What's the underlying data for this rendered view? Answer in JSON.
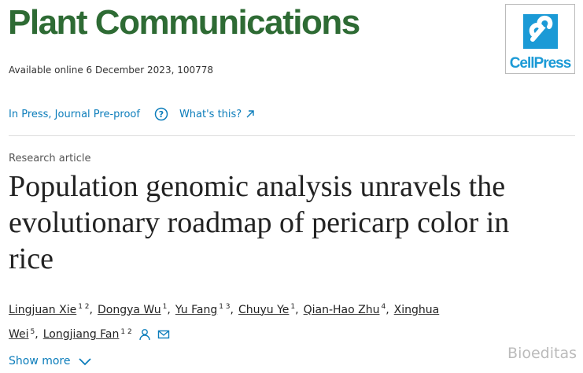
{
  "header": {
    "journal": "Plant Communications",
    "publisher_logo": "CellPress",
    "availability": "Available online 6 December 2023, 100778"
  },
  "status": {
    "label": "In Press, Journal Pre-proof",
    "help": "What's this?"
  },
  "article": {
    "type": "Research article",
    "title": "Population genomic analysis unravels the evolutionary roadmap of pericarp color in rice",
    "authors": [
      {
        "name": "Lingjuan Xie",
        "affiliations": "1 2"
      },
      {
        "name": "Dongya Wu",
        "affiliations": "1"
      },
      {
        "name": "Yu Fang",
        "affiliations": "1 3"
      },
      {
        "name": "Chuyu Ye",
        "affiliations": "1"
      },
      {
        "name": "Qian-Hao Zhu",
        "affiliations": "4"
      },
      {
        "name": "Xinghua Wei",
        "affiliations": "5"
      },
      {
        "name": "Longjiang Fan",
        "affiliations": "1 2"
      }
    ]
  },
  "show_more": "Show more",
  "watermark": "Bioeditas"
}
